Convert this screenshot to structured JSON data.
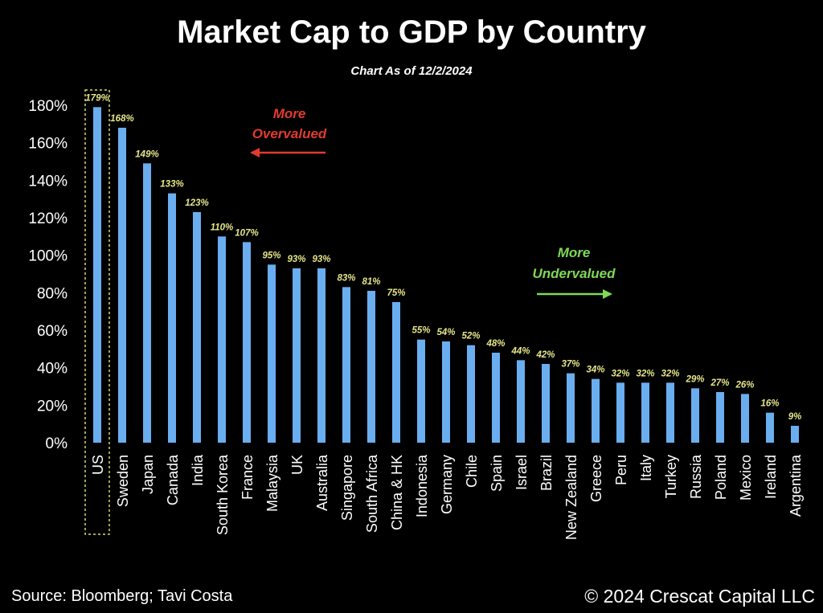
{
  "header": {
    "title": "Market Cap to GDP by Country",
    "subtitle": "Chart As of 12/2/2024"
  },
  "footer": {
    "source": "Source: Bloomberg; Tavi Costa",
    "copyright": "© 2024 Crescat Capital LLC"
  },
  "colors": {
    "bar": "#6aaef0",
    "value_label": "#e6e68a",
    "overvalued": "#e23b2e",
    "undervalued": "#7ed957",
    "highlight_box": "#d8d86a"
  },
  "chart_data": {
    "type": "bar",
    "title": "Market Cap to GDP by Country",
    "subtitle": "Chart As of 12/2/2024",
    "categories": [
      "US",
      "Sweden",
      "Japan",
      "Canada",
      "India",
      "South Korea",
      "France",
      "Malaysia",
      "UK",
      "Australia",
      "Singapore",
      "South Africa",
      "China & HK",
      "Indonesia",
      "Germany",
      "Chile",
      "Spain",
      "Israel",
      "Brazil",
      "New Zealand",
      "Greece",
      "Peru",
      "Italy",
      "Turkey",
      "Russia",
      "Poland",
      "Mexico",
      "Ireland",
      "Argentina"
    ],
    "values": [
      179,
      168,
      149,
      133,
      123,
      110,
      107,
      95,
      93,
      93,
      83,
      81,
      75,
      55,
      54,
      52,
      48,
      44,
      42,
      37,
      34,
      32,
      32,
      32,
      29,
      27,
      26,
      16,
      9
    ],
    "value_labels": [
      "179%",
      "168%",
      "149%",
      "133%",
      "123%",
      "110%",
      "107%",
      "95%",
      "93%",
      "93%",
      "83%",
      "81%",
      "75%",
      "55%",
      "54%",
      "52%",
      "48%",
      "44%",
      "42%",
      "37%",
      "34%",
      "32%",
      "32%",
      "32%",
      "29%",
      "27%",
      "26%",
      "16%",
      "9%"
    ],
    "yticks": [
      "0%",
      "20%",
      "40%",
      "60%",
      "80%",
      "100%",
      "120%",
      "140%",
      "160%",
      "180%"
    ],
    "ylim": [
      0,
      180
    ],
    "grid": false,
    "highlighted": "US",
    "annotations": [
      {
        "text": [
          "More",
          "Overvalued"
        ],
        "arrow": "left",
        "color": "#e23b2e"
      },
      {
        "text": [
          "More",
          "Undervalued"
        ],
        "arrow": "right",
        "color": "#7ed957"
      }
    ]
  }
}
